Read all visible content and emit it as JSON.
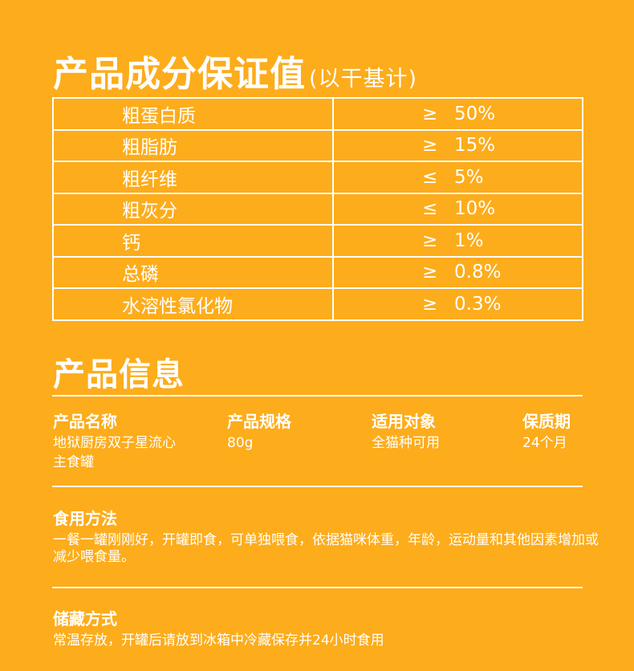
{
  "title": "产品成分保证值",
  "title_note": "(以干基计)",
  "rows": [
    {
      "label": "粗蛋白质",
      "op": "≥",
      "value": "50%"
    },
    {
      "label": "粗脂肪",
      "op": "≥",
      "value": "15%"
    },
    {
      "label": "粗纤维",
      "op": "≤",
      "value": "5%"
    },
    {
      "label": "粗灰分",
      "op": "≤",
      "value": "10%"
    },
    {
      "label": "钙",
      "op": "≥",
      "value": "1%"
    },
    {
      "label": "总磷",
      "op": "≥",
      "value": "0.8%"
    },
    {
      "label": "水溶性氯化物",
      "op": "≥",
      "value": "0.3%"
    }
  ],
  "info_title": "产品信息",
  "info": [
    {
      "header": "产品名称",
      "value": "地狱厨房双子星流心主食罐"
    },
    {
      "header": "产品规格",
      "value": "80g"
    },
    {
      "header": "适用对象",
      "value": "全猫种可用"
    },
    {
      "header": "保质期",
      "value": "24个月"
    }
  ],
  "usage": {
    "header": "食用方法",
    "text": "一餐一罐刚刚好，开罐即食，可单独喂食，依据猫咪体重，年龄，运动量和其他因素增加或减少喂食量。"
  },
  "storage": {
    "header": "储藏方式",
    "text": "常温存放，开罐后请放到冰箱中冷藏保存并24小时食用"
  },
  "colors": {
    "background": "#FDAC1B",
    "foreground": "#FFFFFF"
  }
}
